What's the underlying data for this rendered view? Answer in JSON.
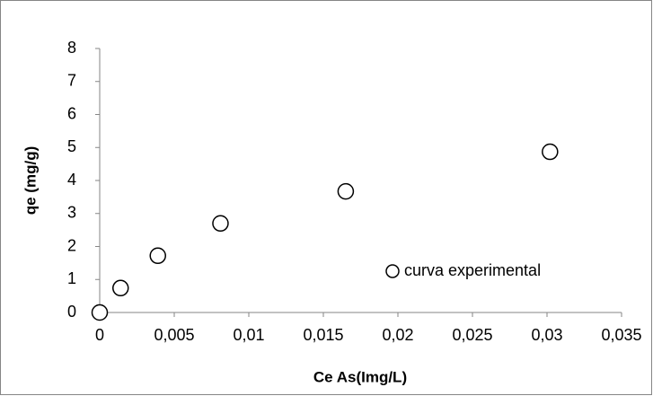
{
  "chart_data": {
    "type": "scatter",
    "x_label": "Ce As(Img/L)",
    "y_label": "qe (mg/g)",
    "series": [
      {
        "name": "curva experimental",
        "color": "#000000",
        "x": [
          0,
          0.0014,
          0.0039,
          0.0081,
          0.0165,
          0.0302
        ],
        "values": [
          0,
          0.74,
          1.72,
          2.7,
          3.67,
          4.87
        ]
      }
    ],
    "xlim": [
      0,
      0.035
    ],
    "xticks": [
      0,
      {
        "value": 0.005,
        "label": "0,005"
      },
      {
        "value": 0.01,
        "label": "0,01"
      },
      {
        "value": 0.015,
        "label": "0,015"
      },
      {
        "value": 0.02,
        "label": "0,02"
      },
      {
        "value": 0.025,
        "label": "0,025"
      },
      {
        "value": 0.03,
        "label": "0,03"
      },
      {
        "value": 0.035,
        "label": "0,035"
      }
    ],
    "ylim": [
      0,
      8
    ],
    "yticks": [
      0,
      1,
      2,
      3,
      4,
      5,
      6,
      7,
      8
    ],
    "grid": false
  }
}
